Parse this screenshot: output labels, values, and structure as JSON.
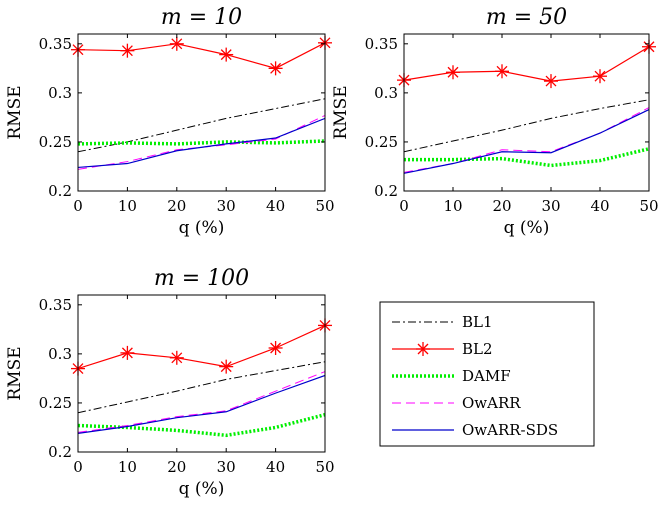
{
  "chart_data": [
    {
      "type": "line",
      "title": "m = 10",
      "xlabel": "q (%)",
      "ylabel": "RMSE",
      "x": [
        0,
        10,
        20,
        30,
        40,
        50
      ],
      "xlim": [
        0,
        50
      ],
      "ylim": [
        0.2,
        0.36
      ],
      "xticks": [
        "0",
        "10",
        "20",
        "30",
        "40",
        "50"
      ],
      "yticks": [
        "0.2",
        "0.25",
        "0.3",
        "0.35"
      ],
      "series": [
        {
          "name": "BL1",
          "values": [
            0.24,
            0.25,
            0.262,
            0.274,
            0.284,
            0.294
          ]
        },
        {
          "name": "BL2",
          "values": [
            0.344,
            0.343,
            0.35,
            0.339,
            0.325,
            0.351
          ]
        },
        {
          "name": "DAMF",
          "values": [
            0.248,
            0.249,
            0.248,
            0.25,
            0.249,
            0.251
          ]
        },
        {
          "name": "OwARR",
          "values": [
            0.222,
            0.23,
            0.242,
            0.247,
            0.253,
            0.277
          ]
        },
        {
          "name": "OwARR-SDS",
          "values": [
            0.224,
            0.228,
            0.241,
            0.248,
            0.254,
            0.274
          ]
        }
      ]
    },
    {
      "type": "line",
      "title": "m = 50",
      "xlabel": "q (%)",
      "ylabel": "RMSE",
      "x": [
        0,
        10,
        20,
        30,
        40,
        50
      ],
      "xlim": [
        0,
        50
      ],
      "ylim": [
        0.2,
        0.36
      ],
      "xticks": [
        "0",
        "10",
        "20",
        "30",
        "40",
        "50"
      ],
      "yticks": [
        "0.2",
        "0.25",
        "0.3",
        "0.35"
      ],
      "series": [
        {
          "name": "BL1",
          "values": [
            0.24,
            0.251,
            0.262,
            0.274,
            0.284,
            0.293
          ]
        },
        {
          "name": "BL2",
          "values": [
            0.313,
            0.321,
            0.322,
            0.312,
            0.317,
            0.347
          ]
        },
        {
          "name": "DAMF",
          "values": [
            0.232,
            0.232,
            0.233,
            0.226,
            0.231,
            0.243
          ]
        },
        {
          "name": "OwARR",
          "values": [
            0.219,
            0.228,
            0.242,
            0.24,
            0.259,
            0.285
          ]
        },
        {
          "name": "OwARR-SDS",
          "values": [
            0.218,
            0.228,
            0.24,
            0.239,
            0.259,
            0.283
          ]
        }
      ]
    },
    {
      "type": "line",
      "title": "m = 100",
      "xlabel": "q (%)",
      "ylabel": "RMSE",
      "x": [
        0,
        10,
        20,
        30,
        40,
        50
      ],
      "xlim": [
        0,
        50
      ],
      "ylim": [
        0.2,
        0.36
      ],
      "xticks": [
        "0",
        "10",
        "20",
        "30",
        "40",
        "50"
      ],
      "yticks": [
        "0.2",
        "0.25",
        "0.3",
        "0.35"
      ],
      "series": [
        {
          "name": "BL1",
          "values": [
            0.24,
            0.251,
            0.262,
            0.274,
            0.283,
            0.292
          ]
        },
        {
          "name": "BL2",
          "values": [
            0.285,
            0.301,
            0.296,
            0.287,
            0.306,
            0.329
          ]
        },
        {
          "name": "DAMF",
          "values": [
            0.227,
            0.225,
            0.222,
            0.217,
            0.225,
            0.238
          ]
        },
        {
          "name": "OwARR",
          "values": [
            0.22,
            0.227,
            0.236,
            0.242,
            0.262,
            0.282
          ]
        },
        {
          "name": "OwARR-SDS",
          "values": [
            0.219,
            0.226,
            0.235,
            0.241,
            0.26,
            0.278
          ]
        }
      ]
    }
  ],
  "legend": {
    "entries": [
      "BL1",
      "BL2",
      "DAMF",
      "OwARR",
      "OwARR-SDS"
    ]
  },
  "series_styles": {
    "BL1": {
      "color": "#000000",
      "dash": "dashdot",
      "marker": "none"
    },
    "BL2": {
      "color": "#ff0000",
      "dash": "solid",
      "marker": "asterisk"
    },
    "DAMF": {
      "color": "#00ee00",
      "dash": "dotted",
      "marker": "none"
    },
    "OwARR": {
      "color": "#ff00ff",
      "dash": "dashed",
      "marker": "none"
    },
    "OwARR-SDS": {
      "color": "#0000cc",
      "dash": "solid",
      "marker": "none"
    }
  }
}
